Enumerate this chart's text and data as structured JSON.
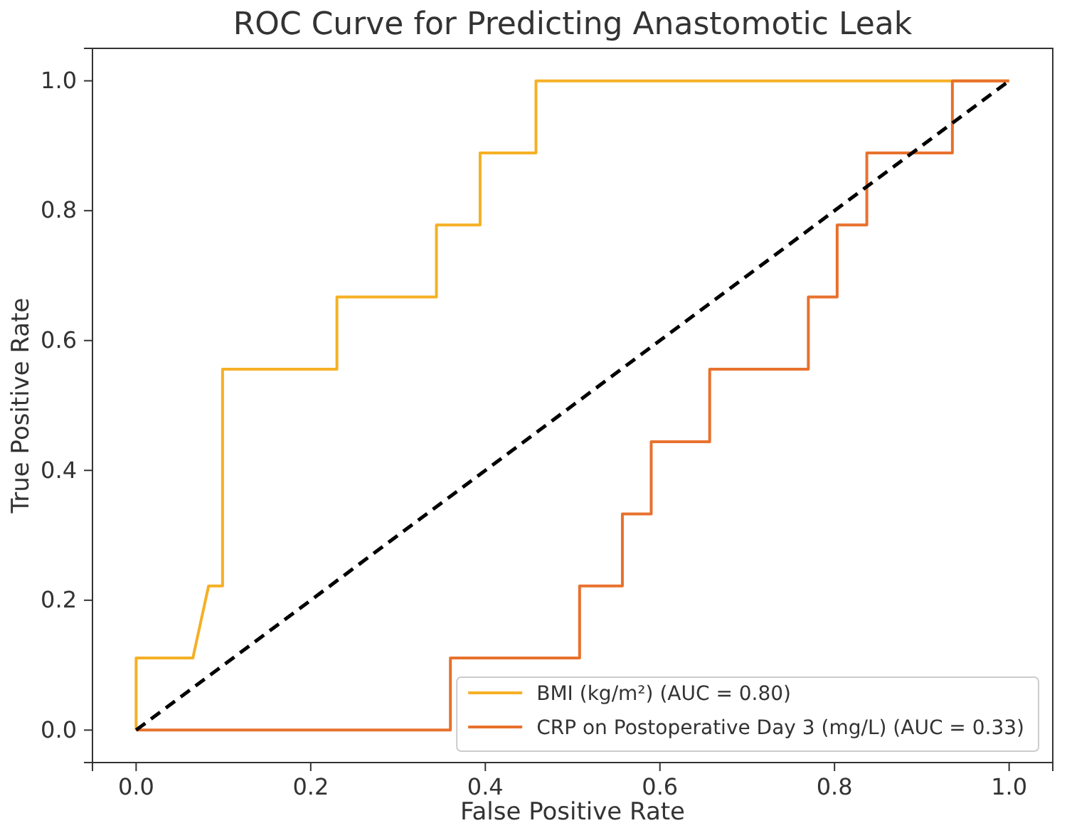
{
  "chart_data": {
    "type": "line",
    "title": "ROC Curve for Predicting Anastomotic Leak",
    "xlabel": "False Positive Rate",
    "ylabel": "True Positive Rate",
    "xlim": [
      -0.05,
      1.05
    ],
    "ylim": [
      -0.05,
      1.05
    ],
    "xticks": [
      {
        "value": 0,
        "label": "0.0"
      },
      0.2,
      0.4,
      0.6,
      0.8,
      {
        "value": 1,
        "label": "1.0"
      }
    ],
    "yticks": [
      {
        "value": 0,
        "label": "0.0"
      },
      0.2,
      0.4,
      0.6,
      0.8,
      {
        "value": 1,
        "label": "1.0"
      }
    ],
    "grid": false,
    "legend": "bottom right",
    "marker": "none",
    "series": [
      {
        "name": "BMI (kg/m²) (AUC = 0.80)",
        "color": "#f5b025",
        "line_style": "solid",
        "x": [
          0,
          0,
          0.065,
          0.083,
          0.099,
          0.099,
          0.23,
          0.23,
          0.344,
          0.344,
          0.394,
          0.394,
          0.458,
          0.458,
          1
        ],
        "values": [
          0,
          0.111,
          0.111,
          0.222,
          0.222,
          0.556,
          0.556,
          0.667,
          0.667,
          0.778,
          0.778,
          0.889,
          0.889,
          1,
          1
        ]
      },
      {
        "name": "CRP on Postoperative Day 3 (mg/L) (AUC = 0.33)",
        "color": "#e8712d",
        "line_style": "solid",
        "x": [
          0,
          0.36,
          0.36,
          0.508,
          0.508,
          0.557,
          0.557,
          0.59,
          0.59,
          0.657,
          0.657,
          0.77,
          0.77,
          0.803,
          0.803,
          0.837,
          0.837,
          0.935,
          0.935,
          1
        ],
        "values": [
          0,
          0,
          0.111,
          0.111,
          0.222,
          0.222,
          0.333,
          0.333,
          0.444,
          0.444,
          0.556,
          0.556,
          0.667,
          0.667,
          0.778,
          0.778,
          0.889,
          0.889,
          1,
          1
        ]
      },
      {
        "color": "#000000",
        "line_style": "dashed",
        "x": [
          0,
          1
        ],
        "values": [
          0,
          1
        ]
      }
    ]
  }
}
